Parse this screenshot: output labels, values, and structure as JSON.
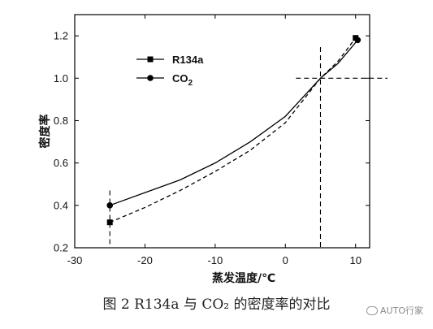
{
  "chart_data": {
    "type": "line",
    "xlabel": "蒸发温度/℃",
    "ylabel": "密度率",
    "xlim": [
      -30,
      12
    ],
    "ylim": [
      0.2,
      1.3
    ],
    "x_ticks": [
      -30,
      -20,
      -10,
      0,
      10
    ],
    "y_ticks": [
      0.2,
      0.4,
      0.6,
      0.8,
      1.0,
      1.2
    ],
    "y_tick_labels": [
      "0.2",
      "0.4",
      "0.6",
      "0.8",
      "1.0",
      "1.2"
    ],
    "series": [
      {
        "name": "R134a",
        "style": "dashed",
        "marker": "square",
        "x": [
          -25,
          -20,
          -15,
          -10,
          -5,
          0,
          5,
          7.5,
          10
        ],
        "y": [
          0.32,
          0.39,
          0.47,
          0.56,
          0.66,
          0.79,
          1.0,
          1.08,
          1.19
        ],
        "marker_x": [
          -25,
          10
        ],
        "marker_y": [
          0.32,
          1.19
        ]
      },
      {
        "name": "CO2",
        "name_main": "CO",
        "name_sub": "2",
        "style": "solid",
        "marker": "circle",
        "x": [
          -25,
          -20,
          -15,
          -10,
          -5,
          0,
          5,
          7.5,
          10.3
        ],
        "y": [
          0.4,
          0.46,
          0.52,
          0.6,
          0.7,
          0.82,
          1.0,
          1.07,
          1.18
        ],
        "marker_x": [
          -25,
          10.3
        ],
        "marker_y": [
          0.4,
          1.18
        ]
      }
    ],
    "reference_lines": {
      "vertical": [
        -25,
        5
      ],
      "horizontal": [
        1.0
      ]
    },
    "legend_position": "top-left",
    "grid": false
  },
  "caption": "图 2  R134a 与 CO₂ 的密度率的对比",
  "watermark": "AUTO行家",
  "colors": {
    "line": "#000000",
    "text": "#111111"
  }
}
